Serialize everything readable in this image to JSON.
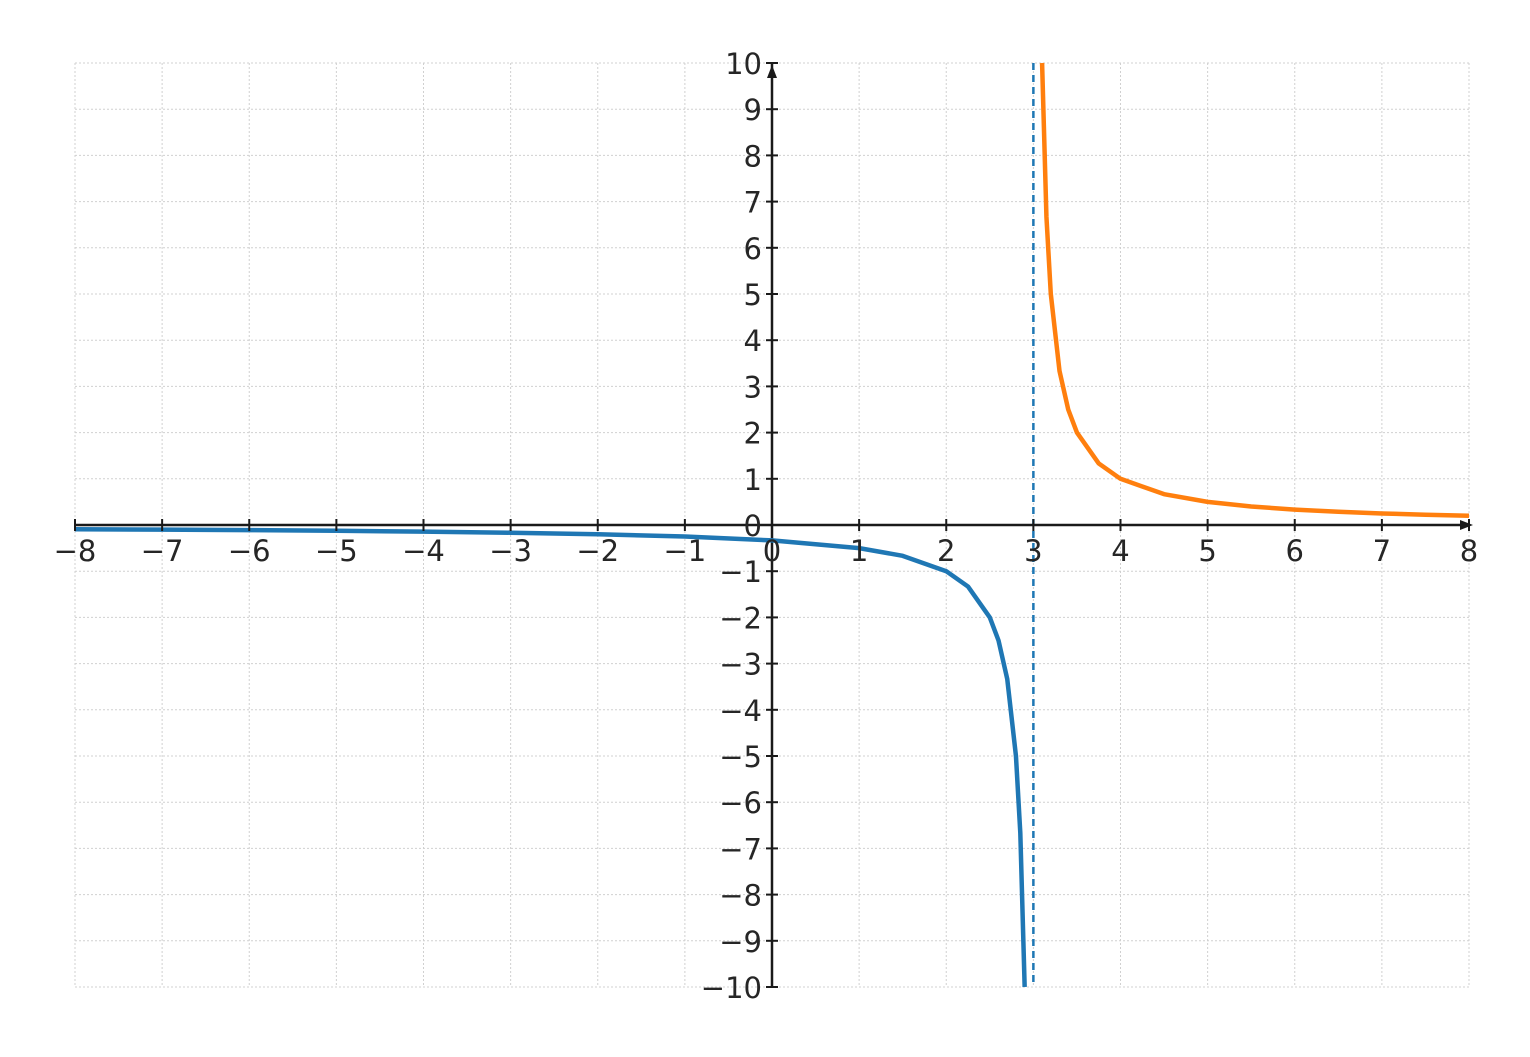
{
  "chart_data": {
    "type": "line",
    "title": "",
    "xlabel": "",
    "ylabel": "",
    "xlim": [
      -8,
      8
    ],
    "ylim": [
      -10,
      10
    ],
    "grid": true,
    "x_ticks": [
      -8,
      -7,
      -6,
      -5,
      -4,
      -3,
      -2,
      -1,
      0,
      1,
      2,
      3,
      4,
      5,
      6,
      7,
      8
    ],
    "y_ticks": [
      -10,
      -9,
      -8,
      -7,
      -6,
      -5,
      -4,
      -3,
      -2,
      -1,
      0,
      1,
      2,
      3,
      4,
      5,
      6,
      7,
      8,
      9,
      10
    ],
    "x_tick_labels": [
      "−8",
      "−7",
      "−6",
      "−5",
      "−4",
      "−3",
      "−2",
      "−1",
      "0",
      "1",
      "2",
      "3",
      "4",
      "5",
      "6",
      "7",
      "8"
    ],
    "y_tick_labels": [
      "−10",
      "−9",
      "−8",
      "−7",
      "−6",
      "−5",
      "−4",
      "−3",
      "−2",
      "−1",
      "0",
      "1",
      "2",
      "3",
      "4",
      "5",
      "6",
      "7",
      "8",
      "9",
      "10"
    ],
    "series": [
      {
        "color": "#1f77b4",
        "points": [
          [
            -8,
            -0.091
          ],
          [
            -7,
            -0.1
          ],
          [
            -6,
            -0.111
          ],
          [
            -5,
            -0.125
          ],
          [
            -4,
            -0.143
          ],
          [
            -3,
            -0.167
          ],
          [
            -2,
            -0.2
          ],
          [
            -1,
            -0.25
          ],
          [
            0,
            -0.333
          ],
          [
            1,
            -0.5
          ],
          [
            1.5,
            -0.667
          ],
          [
            2,
            -1
          ],
          [
            2.25,
            -1.333
          ],
          [
            2.5,
            -2
          ],
          [
            2.6,
            -2.5
          ],
          [
            2.7,
            -3.333
          ],
          [
            2.8,
            -5
          ],
          [
            2.85,
            -6.667
          ],
          [
            2.9,
            -10
          ]
        ]
      },
      {
        "color": "#ff7f0e",
        "points": [
          [
            3.1,
            10
          ],
          [
            3.15,
            6.667
          ],
          [
            3.2,
            5
          ],
          [
            3.3,
            3.333
          ],
          [
            3.4,
            2.5
          ],
          [
            3.5,
            2
          ],
          [
            3.75,
            1.333
          ],
          [
            4,
            1
          ],
          [
            4.5,
            0.667
          ],
          [
            5,
            0.5
          ],
          [
            5.5,
            0.4
          ],
          [
            6,
            0.333
          ],
          [
            6.5,
            0.286
          ],
          [
            7,
            0.25
          ],
          [
            7.5,
            0.222
          ],
          [
            8,
            0.2
          ]
        ]
      }
    ],
    "asymptote": {
      "x": 3,
      "style": "dashed",
      "color": "#1f77b4"
    },
    "axis_color": "#1a1a1a",
    "grid_color": "#d0d0d0"
  }
}
